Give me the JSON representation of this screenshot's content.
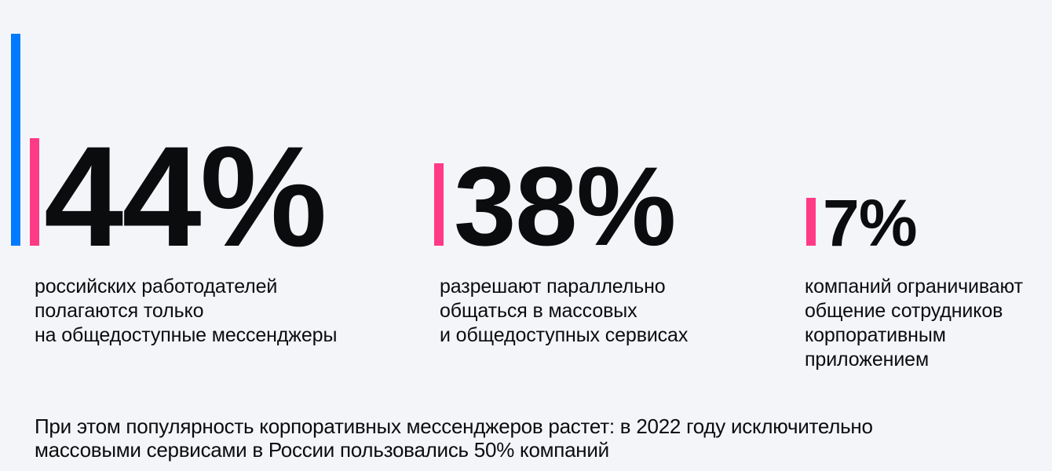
{
  "page": {
    "background_color": "#F4F5F8",
    "accent_blue": "#007AFF",
    "accent_pink": "#FF3A87",
    "text_color": "#0B0C0E"
  },
  "stats": [
    {
      "value": "44%",
      "desc_lines": [
        "российских работодателей",
        "полагаются только",
        "на общедоступные мессенджеры"
      ]
    },
    {
      "value": "38%",
      "desc_lines": [
        "разрешают параллельно",
        "общаться в массовых",
        "и общедоступных сервисах"
      ]
    },
    {
      "value": "7%",
      "desc_lines": [
        "компаний ограничивают",
        "общение сотрудников",
        "корпоративным",
        "приложением"
      ]
    }
  ],
  "footer": {
    "lines": [
      "При этом популярность корпоративных мессенджеров растет: в 2022 году исключительно",
      "массовыми сервисами в России пользовались 50% компаний"
    ]
  },
  "chart_data": {
    "type": "bar",
    "categories": [
      "российских работодателей полагаются только на общедоступные мессенджеры",
      "разрешают параллельно общаться в массовых и общедоступных сервисах",
      "компаний ограничивают общение сотрудников корпоративным приложением"
    ],
    "values": [
      44,
      38,
      7
    ],
    "unit": "%",
    "title": "",
    "xlabel": "",
    "ylabel": "",
    "annotation": "При этом популярность корпоративных мессенджеров растет: в 2022 году исключительно массовыми сервисами в России пользовались 50% компаний",
    "legend": false,
    "grid": false,
    "bar_color": "#FF3A87",
    "accent_color": "#007AFF"
  }
}
